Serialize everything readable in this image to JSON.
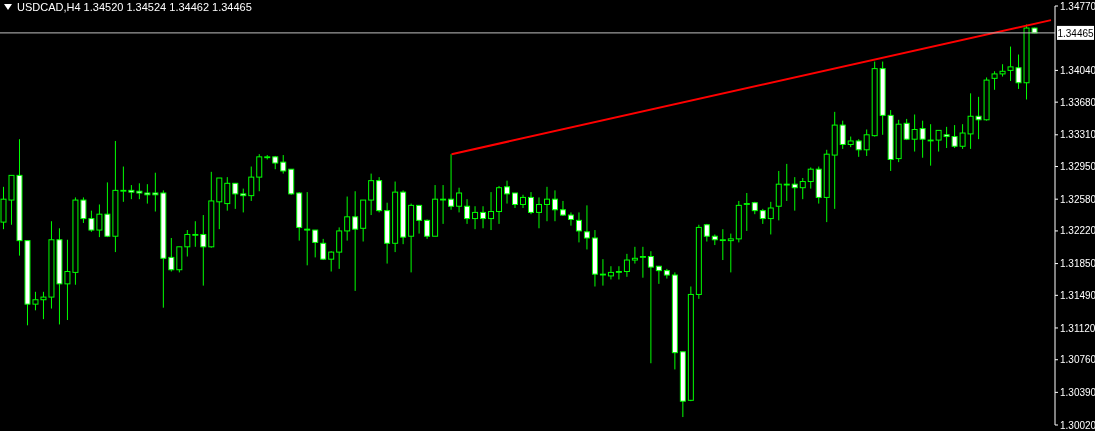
{
  "chart_data": {
    "type": "candlestick",
    "title": "USDCAD,H4 1.34520 1.34524 1.34462 1.34465",
    "color": "#00ff00",
    "tick_labels": "y",
    "categories": [
      null,
      null,
      null,
      null,
      null,
      null,
      null,
      null,
      null,
      null,
      null,
      null,
      null,
      null,
      null,
      null,
      null,
      null,
      null,
      null,
      null,
      null,
      null,
      null,
      null,
      null,
      null,
      null,
      null,
      null,
      null,
      null,
      null,
      null,
      null,
      null,
      null,
      null,
      null,
      null,
      null,
      null,
      null,
      null,
      null,
      null,
      null,
      null,
      null,
      null,
      null,
      null,
      null,
      null,
      null,
      null,
      null,
      null,
      null,
      null,
      null,
      null,
      null,
      null,
      null,
      null,
      null,
      null,
      null,
      null,
      null,
      null,
      null,
      null,
      null,
      null,
      null,
      null,
      null,
      null,
      null,
      null,
      null,
      null,
      null,
      null,
      null,
      null,
      null,
      null,
      null,
      null,
      null,
      null,
      null,
      null,
      null,
      null,
      null,
      null,
      null,
      null,
      null,
      null,
      null,
      null,
      null,
      null,
      null,
      null,
      null,
      null,
      null,
      null,
      null,
      null,
      null,
      null,
      null,
      null,
      null,
      null,
      null,
      null,
      null,
      null,
      null,
      null,
      null,
      null,
      null,
      null
    ],
    "ohlc": [
      [
        1.3232,
        1.3272,
        1.3224,
        1.3258
      ],
      [
        1.3257,
        1.3285,
        1.3229,
        1.3285
      ],
      [
        1.3285,
        1.3326,
        1.3194,
        1.3211
      ],
      [
        1.3211,
        1.3211,
        1.3115,
        1.3139
      ],
      [
        1.3139,
        1.3153,
        1.3132,
        1.3144
      ],
      [
        1.3144,
        1.3153,
        1.3122,
        1.3147
      ],
      [
        1.3147,
        1.3233,
        1.3134,
        1.3212
      ],
      [
        1.3212,
        1.3225,
        1.3116,
        1.3162
      ],
      [
        1.3162,
        1.3212,
        1.3121,
        1.3176
      ],
      [
        1.3175,
        1.326,
        1.3161,
        1.3257
      ],
      [
        1.3257,
        1.326,
        1.3231,
        1.3236
      ],
      [
        1.3236,
        1.3245,
        1.3221,
        1.3223
      ],
      [
        1.3223,
        1.3252,
        1.3215,
        1.3241
      ],
      [
        1.3241,
        1.3277,
        1.3215,
        1.3216
      ],
      [
        1.3216,
        1.3324,
        1.3198,
        1.3268
      ],
      [
        1.3268,
        1.3295,
        1.3255,
        1.3268
      ],
      [
        1.3268,
        1.3274,
        1.3258,
        1.3266
      ],
      [
        1.3267,
        1.3276,
        1.3258,
        1.3265
      ],
      [
        1.3265,
        1.3275,
        1.3253,
        1.3263
      ],
      [
        1.3265,
        1.3288,
        1.3244,
        1.3263
      ],
      [
        1.3265,
        1.3268,
        1.3135,
        1.3191
      ],
      [
        1.3192,
        1.3214,
        1.3176,
        1.3178
      ],
      [
        1.3178,
        1.3204,
        1.3175,
        1.3204
      ],
      [
        1.3204,
        1.3223,
        1.3193,
        1.3218
      ],
      [
        1.3218,
        1.3233,
        1.3204,
        1.3218
      ],
      [
        1.3218,
        1.324,
        1.316,
        1.3204
      ],
      [
        1.3204,
        1.3289,
        1.3203,
        1.3256
      ],
      [
        1.3255,
        1.3282,
        1.3224,
        1.3282
      ],
      [
        1.3253,
        1.3283,
        1.3245,
        1.3276
      ],
      [
        1.3276,
        1.3276,
        1.3247,
        1.3264
      ],
      [
        1.3264,
        1.327,
        1.3243,
        1.3262
      ],
      [
        1.3262,
        1.3295,
        1.3256,
        1.3283
      ],
      [
        1.3283,
        1.3309,
        1.3267,
        1.3306
      ],
      [
        1.3306,
        1.3308,
        1.3303,
        1.3306
      ],
      [
        1.3306,
        1.3307,
        1.3292,
        1.3299
      ],
      [
        1.33,
        1.3308,
        1.3287,
        1.329
      ],
      [
        1.3292,
        1.3292,
        1.3263,
        1.3264
      ],
      [
        1.3265,
        1.3266,
        1.3211,
        1.3226
      ],
      [
        1.3224,
        1.3266,
        1.3183,
        1.3223
      ],
      [
        1.3223,
        1.3223,
        1.3192,
        1.3209
      ],
      [
        1.3208,
        1.3213,
        1.3189,
        1.319
      ],
      [
        1.319,
        1.3199,
        1.3176,
        1.3198
      ],
      [
        1.3198,
        1.3226,
        1.3179,
        1.3222
      ],
      [
        1.3222,
        1.3261,
        1.3211,
        1.3238
      ],
      [
        1.3238,
        1.3267,
        1.3154,
        1.3224
      ],
      [
        1.3225,
        1.3257,
        1.321,
        1.3257
      ],
      [
        1.3257,
        1.3287,
        1.324,
        1.3279
      ],
      [
        1.3279,
        1.3283,
        1.3243,
        1.3245
      ],
      [
        1.3245,
        1.3254,
        1.3185,
        1.3208
      ],
      [
        1.3208,
        1.3278,
        1.3198,
        1.3266
      ],
      [
        1.3266,
        1.3268,
        1.3207,
        1.3215
      ],
      [
        1.3216,
        1.3253,
        1.3175,
        1.3251
      ],
      [
        1.3251,
        1.3251,
        1.3219,
        1.3234
      ],
      [
        1.3234,
        1.3235,
        1.3213,
        1.3216
      ],
      [
        1.3216,
        1.3274,
        1.3216,
        1.3258
      ],
      [
        1.3258,
        1.3274,
        1.323,
        1.3258
      ],
      [
        1.3258,
        1.3309,
        1.3246,
        1.325
      ],
      [
        1.325,
        1.3271,
        1.3243,
        1.3265
      ],
      [
        1.325,
        1.3258,
        1.323,
        1.3236
      ],
      [
        1.3236,
        1.325,
        1.3224,
        1.3243
      ],
      [
        1.3243,
        1.325,
        1.3225,
        1.3236
      ],
      [
        1.3236,
        1.3266,
        1.3223,
        1.3244
      ],
      [
        1.3244,
        1.3273,
        1.323,
        1.3271
      ],
      [
        1.3272,
        1.3279,
        1.3253,
        1.3264
      ],
      [
        1.3265,
        1.3265,
        1.3248,
        1.3252
      ],
      [
        1.3252,
        1.3263,
        1.3248,
        1.326
      ],
      [
        1.326,
        1.3266,
        1.3241,
        1.3243
      ],
      [
        1.3243,
        1.326,
        1.3225,
        1.3252
      ],
      [
        1.3252,
        1.3272,
        1.3233,
        1.3258
      ],
      [
        1.3258,
        1.3268,
        1.3233,
        1.3246
      ],
      [
        1.3246,
        1.3256,
        1.3239,
        1.324
      ],
      [
        1.324,
        1.3243,
        1.3228,
        1.3235
      ],
      [
        1.3234,
        1.3243,
        1.3209,
        1.3222
      ],
      [
        1.3221,
        1.3251,
        1.3201,
        1.3214
      ],
      [
        1.3214,
        1.3223,
        1.3159,
        1.3173
      ],
      [
        1.3173,
        1.319,
        1.316,
        1.3173
      ],
      [
        1.3171,
        1.3182,
        1.3167,
        1.3175
      ],
      [
        1.3176,
        1.3182,
        1.3167,
        1.3176
      ],
      [
        1.3176,
        1.3196,
        1.317,
        1.3189
      ],
      [
        1.3189,
        1.3204,
        1.3185,
        1.3191
      ],
      [
        1.3193,
        1.3204,
        1.3169,
        1.3193
      ],
      [
        1.3193,
        1.3199,
        1.3072,
        1.3181
      ],
      [
        1.3182,
        1.3182,
        1.3162,
        1.3177
      ],
      [
        1.3177,
        1.3179,
        1.3168,
        1.3172
      ],
      [
        1.3172,
        1.3175,
        1.3065,
        1.3084
      ],
      [
        1.3085,
        1.3085,
        1.3011,
        1.3029
      ],
      [
        1.303,
        1.3159,
        1.3029,
        1.315
      ],
      [
        1.315,
        1.3229,
        1.3145,
        1.3226
      ],
      [
        1.3229,
        1.323,
        1.321,
        1.3216
      ],
      [
        1.3216,
        1.3218,
        1.3206,
        1.3212
      ],
      [
        1.3212,
        1.3224,
        1.3189,
        1.3212
      ],
      [
        1.3211,
        1.3219,
        1.3175,
        1.3213
      ],
      [
        1.3213,
        1.3256,
        1.3209,
        1.3251
      ],
      [
        1.3253,
        1.3265,
        1.3222,
        1.3253
      ],
      [
        1.3254,
        1.3255,
        1.3241,
        1.3245
      ],
      [
        1.3245,
        1.3247,
        1.323,
        1.3236
      ],
      [
        1.3236,
        1.3255,
        1.3218,
        1.3248
      ],
      [
        1.325,
        1.329,
        1.3234,
        1.3275
      ],
      [
        1.3275,
        1.3298,
        1.3256,
        1.3275
      ],
      [
        1.3275,
        1.3283,
        1.3245,
        1.3271
      ],
      [
        1.3271,
        1.3282,
        1.3258,
        1.3278
      ],
      [
        1.3278,
        1.3294,
        1.327,
        1.3292
      ],
      [
        1.3292,
        1.3295,
        1.3253,
        1.326
      ],
      [
        1.326,
        1.3314,
        1.3232,
        1.3309
      ],
      [
        1.3308,
        1.3357,
        1.3247,
        1.3342
      ],
      [
        1.3342,
        1.3347,
        1.3315,
        1.332
      ],
      [
        1.332,
        1.3329,
        1.3317,
        1.3324
      ],
      [
        1.3324,
        1.3326,
        1.3306,
        1.3314
      ],
      [
        1.3314,
        1.3337,
        1.3307,
        1.3331
      ],
      [
        1.333,
        1.3414,
        1.3329,
        1.3406
      ],
      [
        1.3406,
        1.3414,
        1.3331,
        1.3353
      ],
      [
        1.3353,
        1.3359,
        1.329,
        1.3303
      ],
      [
        1.3304,
        1.3348,
        1.33,
        1.3343
      ],
      [
        1.3344,
        1.3349,
        1.3325,
        1.3326
      ],
      [
        1.3326,
        1.3354,
        1.3312,
        1.3337
      ],
      [
        1.3338,
        1.3347,
        1.3305,
        1.3326
      ],
      [
        1.3325,
        1.3343,
        1.3296,
        1.3325
      ],
      [
        1.3325,
        1.3336,
        1.3312,
        1.3336
      ],
      [
        1.3331,
        1.334,
        1.3316,
        1.3329
      ],
      [
        1.3329,
        1.3342,
        1.3316,
        1.3318
      ],
      [
        1.3318,
        1.3343,
        1.3315,
        1.3333
      ],
      [
        1.3332,
        1.3378,
        1.3315,
        1.3352
      ],
      [
        1.3352,
        1.3374,
        1.3326,
        1.3348
      ],
      [
        1.3348,
        1.3396,
        1.3347,
        1.3393
      ],
      [
        1.3395,
        1.3403,
        1.3382,
        1.34
      ],
      [
        1.34,
        1.3411,
        1.3397,
        1.3403
      ],
      [
        1.3404,
        1.3431,
        1.3392,
        1.3408
      ],
      [
        1.3407,
        1.3422,
        1.3383,
        1.339
      ],
      [
        1.339,
        1.3456,
        1.3371,
        1.3452
      ],
      [
        1.3452,
        1.34524,
        1.34462,
        1.34465
      ],
      null,
      null
    ],
    "series": [
      {
        "type": "line",
        "color": "#ff0000",
        "marker": "none",
        "values": [
          null,
          null,
          null,
          null,
          null,
          null,
          null,
          null,
          null,
          null,
          null,
          null,
          null,
          null,
          null,
          null,
          null,
          null,
          null,
          null,
          null,
          null,
          null,
          null,
          null,
          null,
          null,
          null,
          null,
          null,
          null,
          null,
          null,
          null,
          null,
          null,
          null,
          null,
          null,
          null,
          null,
          null,
          null,
          null,
          null,
          null,
          null,
          null,
          null,
          null,
          null,
          null,
          null,
          null,
          null,
          null,
          1.3309,
          null,
          null,
          null,
          null,
          null,
          null,
          null,
          null,
          null,
          null,
          null,
          null,
          null,
          null,
          null,
          null,
          null,
          null,
          null,
          null,
          null,
          null,
          null,
          null,
          null,
          null,
          null,
          null,
          null,
          null,
          null,
          null,
          null,
          null,
          null,
          null,
          null,
          null,
          null,
          null,
          null,
          null,
          null,
          null,
          null,
          null,
          null,
          null,
          null,
          null,
          null,
          null,
          null,
          null,
          null,
          null,
          null,
          null,
          null,
          null,
          null,
          null,
          null,
          null,
          null,
          null,
          null,
          null,
          null,
          null,
          null,
          null,
          null,
          null,
          1.3461
        ]
      }
    ],
    "ylim": [
      1.3002,
      1.3477
    ],
    "yticks": [
      {
        "value": 1.3002,
        "label": "1.30020"
      },
      {
        "value": 1.3039,
        "label": "1.30390"
      },
      {
        "value": 1.3076,
        "label": "1.30760"
      },
      {
        "value": 1.3112,
        "label": "1.31120"
      },
      {
        "value": 1.3149,
        "label": "1.31490"
      },
      {
        "value": 1.3185,
        "label": "1.31850"
      },
      {
        "value": 1.3222,
        "label": "1.32220"
      },
      {
        "value": 1.3258,
        "label": "1.32580"
      },
      {
        "value": 1.3295,
        "label": "1.32950"
      },
      {
        "value": 1.3331,
        "label": "1.33310"
      },
      {
        "value": 1.3368,
        "label": "1.33680"
      },
      {
        "value": 1.3404,
        "label": "1.34040"
      },
      {
        "value": 1.3477,
        "label": "1.34770"
      }
    ],
    "ref_lines": [
      {
        "axis": "y",
        "value": 1.34465,
        "label": "1.34465",
        "color": "#c0c0c0"
      }
    ]
  }
}
